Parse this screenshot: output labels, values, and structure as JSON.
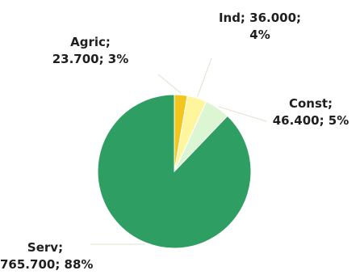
{
  "chart_data": {
    "type": "pie",
    "slices": [
      {
        "name": "Agric",
        "value": 23700,
        "percent": 3,
        "color": "#f2c61f",
        "label_line1": "Agric;",
        "label_line2": "23.700; 3%"
      },
      {
        "name": "Ind",
        "value": 36000,
        "percent": 4,
        "color": "#fff59d",
        "label_line1": "Ind; 36.000;",
        "label_line2": "4%"
      },
      {
        "name": "Const",
        "value": 46400,
        "percent": 5,
        "color": "#dcf5d3",
        "label_line1": "Const;",
        "label_line2": "46.400; 5%"
      },
      {
        "name": "Serv",
        "value": 765700,
        "percent": 88,
        "color": "#2e9e62",
        "label_line1": "Serv;",
        "label_line2": "765.700; 88%"
      }
    ],
    "start_angle_deg": 0,
    "direction": "clockwise",
    "legend": "none"
  }
}
